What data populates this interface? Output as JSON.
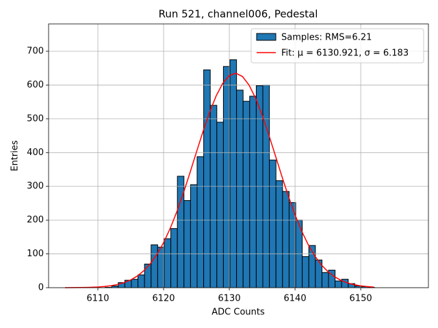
{
  "chart_data": {
    "type": "histogram",
    "title": "Run 521, channel006, Pedestal",
    "xlabel": "ADC Counts",
    "ylabel": "Entries",
    "bins": [
      6111.1,
      6112.1,
      6113.1,
      6114.1,
      6115.1,
      6116.1,
      6117.1,
      6118.1,
      6119.1,
      6120.1,
      6121.1,
      6122.1,
      6123.1,
      6124.1,
      6125.1,
      6126.1,
      6127.1,
      6128.1,
      6129.1,
      6130.1,
      6131.1,
      6132.1,
      6133.1,
      6134.1,
      6135.1,
      6136.1,
      6137.1,
      6138.1,
      6139.1,
      6140.1,
      6141.1,
      6142.1,
      6143.1,
      6144.1,
      6145.1,
      6146.1,
      6147.1,
      6148.1,
      6149.1,
      6150.1,
      6151.1,
      6152.1
    ],
    "series": [
      {
        "name": "Samples: RMS=6.21",
        "color": "#1f77b4",
        "edgecolor": "#000000",
        "values": [
          1,
          5,
          15,
          22,
          25,
          38,
          70,
          127,
          120,
          145,
          175,
          330,
          258,
          305,
          388,
          645,
          540,
          490,
          655,
          675,
          585,
          552,
          567,
          598,
          600,
          378,
          317,
          285,
          252,
          200,
          92,
          125,
          82,
          45,
          52,
          20,
          25,
          12,
          5,
          3,
          1
        ]
      },
      {
        "name": "Fit: μ = 6130.921, σ = 6.183",
        "color": "#ff0000",
        "x": [
          6105,
          6106,
          6107,
          6108,
          6109,
          6110,
          6111,
          6112,
          6113,
          6114,
          6115,
          6116,
          6117,
          6118,
          6119,
          6120,
          6121,
          6122,
          6123,
          6124,
          6125,
          6126,
          6127,
          6128,
          6129,
          6130,
          6131,
          6132,
          6133,
          6134,
          6135,
          6136,
          6137,
          6138,
          6139,
          6140,
          6141,
          6142,
          6143,
          6144,
          6145,
          6146,
          6147,
          6148,
          6149,
          6150,
          6151,
          6152
        ],
        "values": [
          0.1,
          0.2,
          0.4,
          0.7,
          1.2,
          2.1,
          3.5,
          5.9,
          9.5,
          15.0,
          23.0,
          34.5,
          50.3,
          71.6,
          98.9,
          133.4,
          175.3,
          224.2,
          279.5,
          339.4,
          401.5,
          462.6,
          519.3,
          567.9,
          605.1,
          628.0,
          634.9,
          625.4,
          600.1,
          561.0,
          510.9,
          453.1,
          391.7,
          329.8,
          270.4,
          216.0,
          168.1,
          127.6,
          94.2,
          67.8,
          47.6,
          32.5,
          21.6,
          14.0,
          8.8,
          5.4,
          3.3,
          1.9
        ]
      }
    ],
    "xlim": [
      6102.5,
      6160.3
    ],
    "ylim": [
      0,
      781
    ],
    "xticks": [
      6110,
      6120,
      6130,
      6140,
      6150
    ],
    "yticks": [
      0,
      100,
      200,
      300,
      400,
      500,
      600,
      700
    ],
    "grid": true,
    "legend": "upper right"
  }
}
